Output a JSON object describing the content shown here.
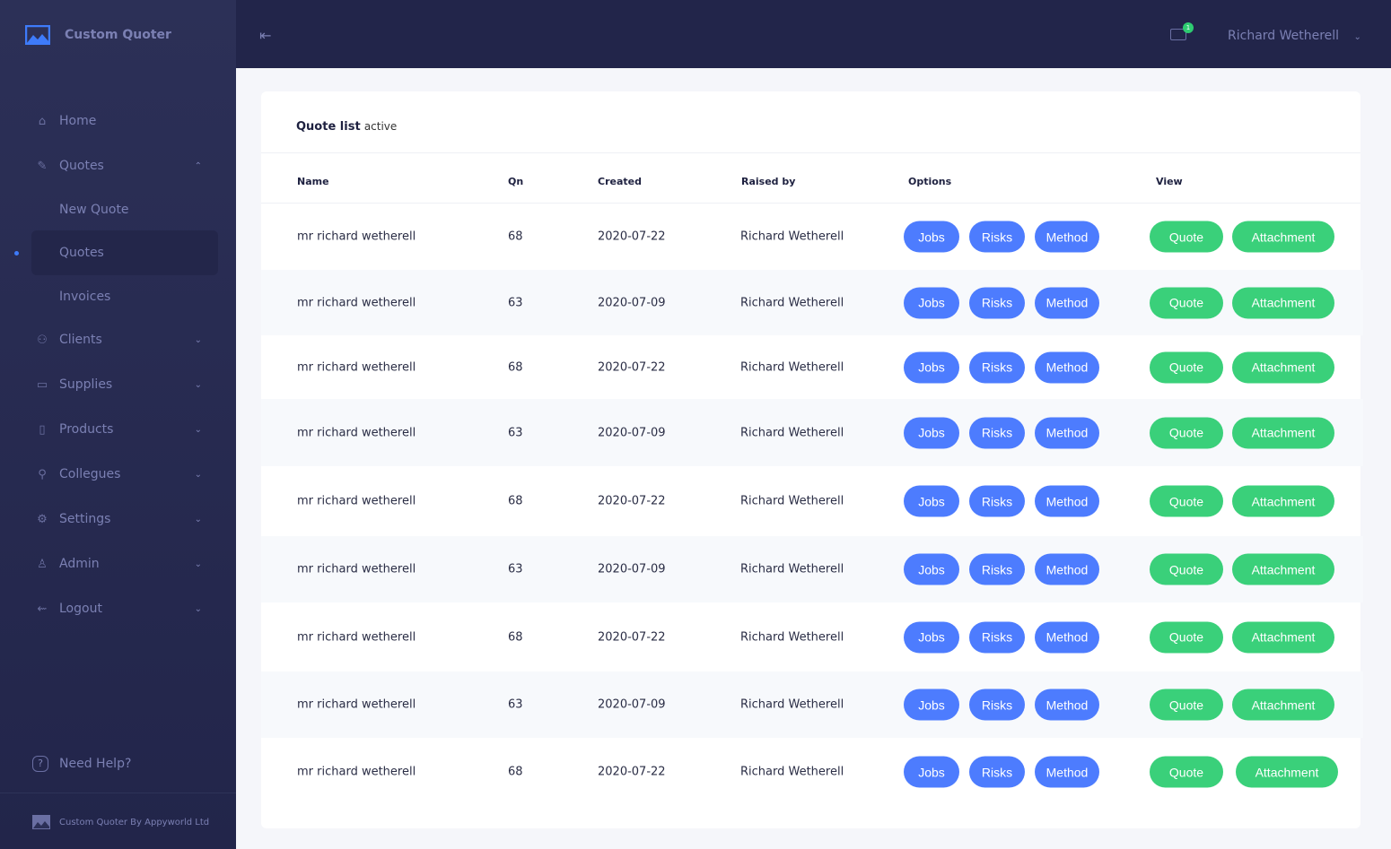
{
  "app": {
    "title": "Custom Quoter",
    "footer": "Custom Quoter By Appyworld Ltd",
    "help": "Need Help?"
  },
  "sidebar": {
    "items": [
      {
        "label": "Home",
        "icon": "home-icon",
        "glyph": "⌂"
      },
      {
        "label": "Quotes",
        "icon": "pencil-icon",
        "glyph": "✎",
        "chev": "⌃",
        "children": [
          "New Quote",
          "Quotes",
          "Invoices"
        ]
      },
      {
        "label": "Clients",
        "icon": "users-icon",
        "glyph": "⚇",
        "chev": "⌄"
      },
      {
        "label": "Supplies",
        "icon": "box-icon",
        "glyph": "▭",
        "chev": "⌄"
      },
      {
        "label": "Products",
        "icon": "document-icon",
        "glyph": "▯",
        "chev": "⌄"
      },
      {
        "label": "Collegues",
        "icon": "user-icon",
        "glyph": "⚲",
        "chev": "⌄"
      },
      {
        "label": "Settings",
        "icon": "gear-icon",
        "glyph": "⚙",
        "chev": "⌄"
      },
      {
        "label": "Admin",
        "icon": "admin-icon",
        "glyph": "♙",
        "chev": "⌄"
      },
      {
        "label": "Logout",
        "icon": "logout-icon",
        "glyph": "⇜",
        "chev": "⌄"
      }
    ]
  },
  "topbar": {
    "user": "Richard Wetherell",
    "mail_count": "1"
  },
  "list": {
    "title": "Quote list",
    "status": "active",
    "headers": [
      "Name",
      "Qn",
      "Created",
      "Raised by",
      "Options",
      "View"
    ],
    "buttons": {
      "jobs": "Jobs",
      "risks": "Risks",
      "method": "Method",
      "quote": "Quote",
      "attachment": "Attachment"
    },
    "rows": [
      [
        "mr richard wetherell",
        "68",
        "2020-07-22",
        "Richard Wetherell"
      ],
      [
        "mr richard wetherell",
        "63",
        "2020-07-09",
        "Richard Wetherell"
      ],
      [
        "mr richard wetherell",
        "68",
        "2020-07-22",
        "Richard Wetherell"
      ],
      [
        "mr richard wetherell",
        "63",
        "2020-07-09",
        "Richard Wetherell"
      ],
      [
        "mr richard wetherell",
        "68",
        "2020-07-22",
        "Richard Wetherell"
      ],
      [
        "mr richard wetherell",
        "63",
        "2020-07-09",
        "Richard Wetherell"
      ],
      [
        "mr richard wetherell",
        "68",
        "2020-07-22",
        "Richard Wetherell"
      ],
      [
        "mr richard wetherell",
        "63",
        "2020-07-09",
        "Richard Wetherell"
      ],
      [
        "mr richard wetherell",
        "68",
        "2020-07-22",
        "Richard Wetherell"
      ]
    ]
  },
  "colors": {
    "primary": "#4d7cfe",
    "success": "#3ad07a",
    "sidebar": "#2c3057"
  }
}
